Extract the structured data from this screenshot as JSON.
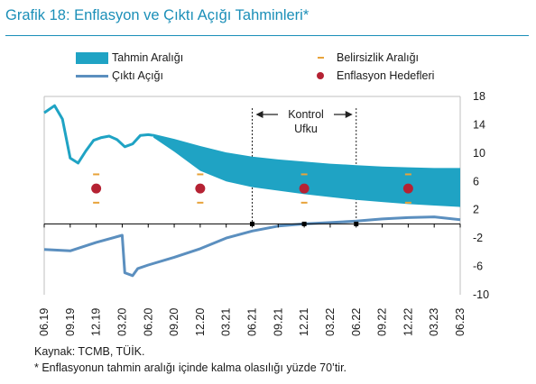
{
  "title": "Grafik 18: Enflasyon ve Çıktı Açığı Tahminleri*",
  "legend": {
    "band": "Tahmin Aralığı",
    "line": "Çıktı Açığı",
    "range": "Belirsizlik Aralığı",
    "target": "Enflasyon Hedefleri"
  },
  "annotation": {
    "line1": "Kontrol",
    "line2": "Ufku"
  },
  "colors": {
    "band": "#1fa3c4",
    "line": "#5b8fbf",
    "dash": "#e8a33a",
    "dot": "#b52233",
    "title": "#1b8fb8"
  },
  "chart_data": {
    "type": "area",
    "x_ticks": [
      "06.19",
      "09.19",
      "12.19",
      "03.20",
      "06.20",
      "09.20",
      "12.20",
      "03.21",
      "06.21",
      "09.21",
      "12.21",
      "03.22",
      "06.22",
      "09.22",
      "12.22",
      "03.23",
      "06.23"
    ],
    "y_ticks": [
      18,
      14,
      10,
      6,
      2,
      -2,
      -6,
      -10
    ],
    "ylim": [
      -10,
      18
    ],
    "inflation_history": {
      "x": [
        0,
        0.4,
        0.7,
        1.0,
        1.3,
        1.6,
        1.9,
        2.2,
        2.5,
        2.8,
        3.1,
        3.4,
        3.7,
        4.0,
        4.2
      ],
      "y": [
        15.7,
        16.7,
        14.8,
        9.3,
        8.6,
        10.3,
        11.8,
        12.2,
        12.4,
        11.9,
        10.9,
        11.3,
        12.5,
        12.6,
        12.5
      ]
    },
    "forecast_band": {
      "x": [
        4.2,
        5,
        6,
        7,
        8,
        9,
        10,
        11,
        12,
        13,
        14,
        15,
        16
      ],
      "upper": [
        12.7,
        12.0,
        11.0,
        10.1,
        9.5,
        9.1,
        8.8,
        8.5,
        8.3,
        8.1,
        8.0,
        7.9,
        7.9
      ],
      "lower": [
        12.2,
        10.2,
        7.5,
        6.0,
        5.2,
        4.7,
        4.2,
        3.8,
        3.4,
        3.1,
        2.8,
        2.6,
        2.4
      ]
    },
    "targets": [
      {
        "x": 2,
        "value": 5,
        "range": [
          3,
          7
        ]
      },
      {
        "x": 6,
        "value": 5,
        "range": [
          3,
          7
        ]
      },
      {
        "x": 10,
        "value": 5,
        "range": [
          3,
          7
        ]
      },
      {
        "x": 14,
        "value": 5,
        "range": [
          3,
          7
        ]
      }
    ],
    "output_gap": {
      "x": [
        0,
        1,
        2,
        3,
        3.1,
        3.4,
        3.6,
        4,
        5,
        6,
        7,
        8,
        9,
        10,
        11,
        12,
        13,
        14,
        15,
        16
      ],
      "y": [
        -3.6,
        -3.8,
        -2.6,
        -1.6,
        -6.9,
        -7.3,
        -6.3,
        -5.8,
        -4.7,
        -3.5,
        -2.0,
        -1.0,
        -0.3,
        0.0,
        0.2,
        0.4,
        0.7,
        0.9,
        1.0,
        0.6
      ]
    },
    "control_horizon": {
      "start": 8,
      "end": 12
    }
  },
  "source": "Kaynak: TCMB, TÜİK.",
  "note": "* Enflasyonun tahmin aralığı içinde kalma olasılığı yüzde 70’tir."
}
